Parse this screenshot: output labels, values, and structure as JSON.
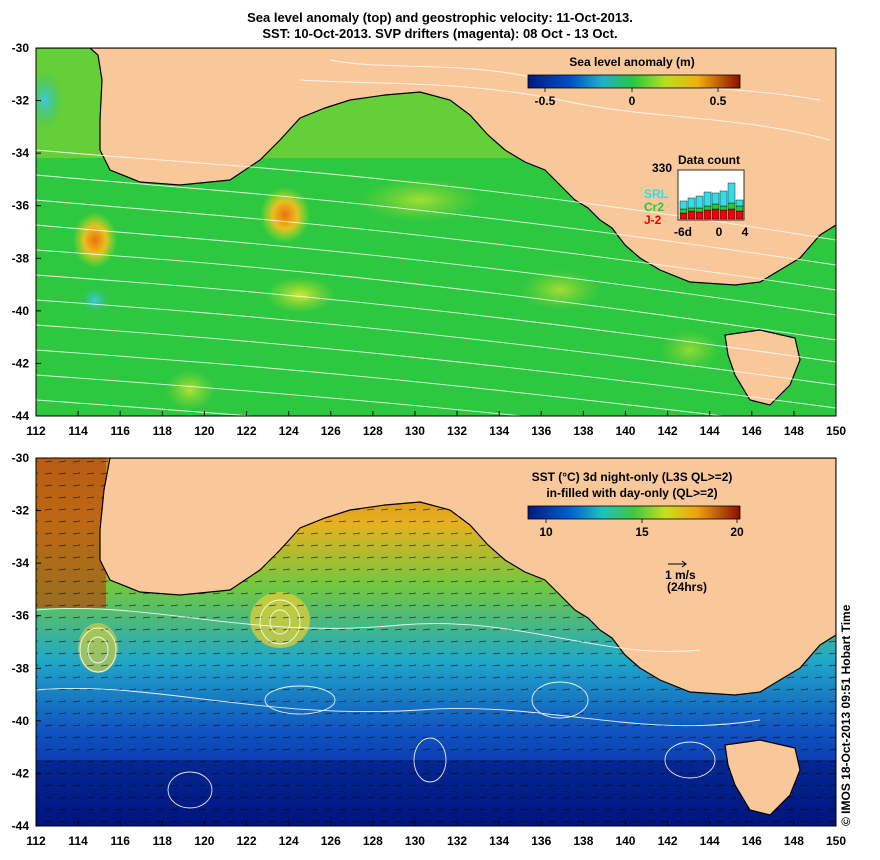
{
  "title_line1": "Sea level anomaly (top) and geostrophic velocity: 11-Oct-2013.",
  "title_line2": "SST: 10-Oct-2013. SVP drifters (magenta): 08 Oct - 13 Oct.",
  "credit": "© IMOS 18-Oct-2013 09:51 Hobart Time",
  "colors": {
    "land": "#f9c89a",
    "coast": "#000000",
    "contour": "#ffffff"
  },
  "top_map": {
    "x_ticks": [
      "112",
      "114",
      "116",
      "118",
      "120",
      "122",
      "124",
      "126",
      "128",
      "130",
      "132",
      "134",
      "136",
      "138",
      "140",
      "142",
      "144",
      "146",
      "148",
      "150"
    ],
    "y_ticks": [
      "-30",
      "-32",
      "-34",
      "-36",
      "-38",
      "-40",
      "-42",
      "-44"
    ],
    "colorbar": {
      "title": "Sea level anomaly (m)",
      "labels": [
        "-0.5",
        "0",
        "0.5"
      ]
    },
    "data_count": {
      "title": "Data count",
      "y_max_label": "330",
      "x_labels": [
        "-6d",
        "0",
        "4"
      ],
      "legend": [
        {
          "label": "SRL",
          "color": "#33dde8"
        },
        {
          "label": "Cr2",
          "color": "#22cc33"
        },
        {
          "label": "J-2",
          "color": "#ee0000"
        }
      ]
    }
  },
  "bottom_map": {
    "x_ticks": [
      "112",
      "114",
      "116",
      "118",
      "120",
      "122",
      "124",
      "126",
      "128",
      "130",
      "132",
      "134",
      "136",
      "138",
      "140",
      "142",
      "144",
      "146",
      "148",
      "150"
    ],
    "y_ticks": [
      "-30",
      "-32",
      "-34",
      "-36",
      "-38",
      "-40",
      "-42",
      "-44"
    ],
    "colorbar": {
      "title_line1": "SST (°C) 3d night-only (L3S QL>=2)",
      "title_line2": "in-filled with day-only (QL>=2)",
      "labels": [
        "10",
        "15",
        "20"
      ]
    },
    "velocity_scale": {
      "label": "1 m/s",
      "sublabel": "(24hrs)"
    }
  }
}
